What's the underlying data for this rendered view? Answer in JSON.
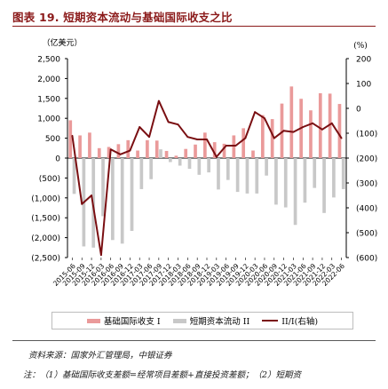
{
  "title": "图表 19. 短期资本流动与基础国际收支之比",
  "chart_data": {
    "type": "bar",
    "left_unit": "（亿美元）",
    "right_unit": "(%)",
    "left_ticks": [
      "2,500",
      "2,000",
      "1,500",
      "1,000",
      "500",
      "0",
      "(500)",
      "(1,000)",
      "(1,500)",
      "(2,000)",
      "(2,500)"
    ],
    "right_ticks": [
      "200",
      "100",
      "0",
      "(100)",
      "(200)",
      "(300)",
      "(400)",
      "(500)",
      "(600)"
    ],
    "ylim_left": [
      -2500,
      2500
    ],
    "ylim_right": [
      -600,
      200
    ],
    "x_labels": [
      "2015-06",
      "2015-09",
      "2015-12",
      "2016-03",
      "2016-06",
      "2016-09",
      "2016-12",
      "2017-03",
      "2017-06",
      "2017-09",
      "2017-12",
      "2018-03",
      "2018-06",
      "2018-09",
      "2018-12",
      "2019-03",
      "2019-06",
      "2019-09",
      "2019-12",
      "2020-03",
      "2020-06",
      "2020-09",
      "2020-12",
      "2021-03",
      "2021-06",
      "2021-09",
      "2021-12",
      "2022-03",
      "2022-06"
    ],
    "series": [
      {
        "name": "基础国际收支 I",
        "axis": "left",
        "color": "#ea9a9a",
        "values": [
          950,
          570,
          640,
          250,
          280,
          350,
          450,
          190,
          450,
          440,
          180,
          60,
          230,
          340,
          640,
          400,
          360,
          570,
          750,
          190,
          1080,
          980,
          1370,
          1800,
          1490,
          1200,
          1630,
          1620,
          1360
        ]
      },
      {
        "name": "短期资本流动 II",
        "axis": "left",
        "color": "#c8c8c8",
        "values": [
          -900,
          -2220,
          -2250,
          -1460,
          -2060,
          -2150,
          -1830,
          -780,
          -530,
          220,
          -100,
          -190,
          -270,
          -420,
          -360,
          -790,
          -550,
          -850,
          -890,
          -890,
          -440,
          -1170,
          -1240,
          -1680,
          -1120,
          -750,
          -1380,
          -990,
          -780
        ]
      },
      {
        "name": "II/I(右轴)",
        "axis": "right",
        "color": "#7a0f12",
        "values": [
          -110,
          -385,
          -350,
          -590,
          -165,
          -185,
          -170,
          -75,
          -115,
          30,
          -55,
          -65,
          -115,
          -125,
          -125,
          -195,
          -150,
          -150,
          -120,
          -15,
          -40,
          -120,
          -90,
          -95,
          -75,
          -60,
          -85,
          -60,
          -120
        ]
      }
    ],
    "grid": false,
    "legend_position": "bottom"
  },
  "source": "资料来源：国家外汇管理局，中银证券",
  "note": "注：（1）基础国际收支差额=经常项目差额+直接投资差额；（2）短期资"
}
